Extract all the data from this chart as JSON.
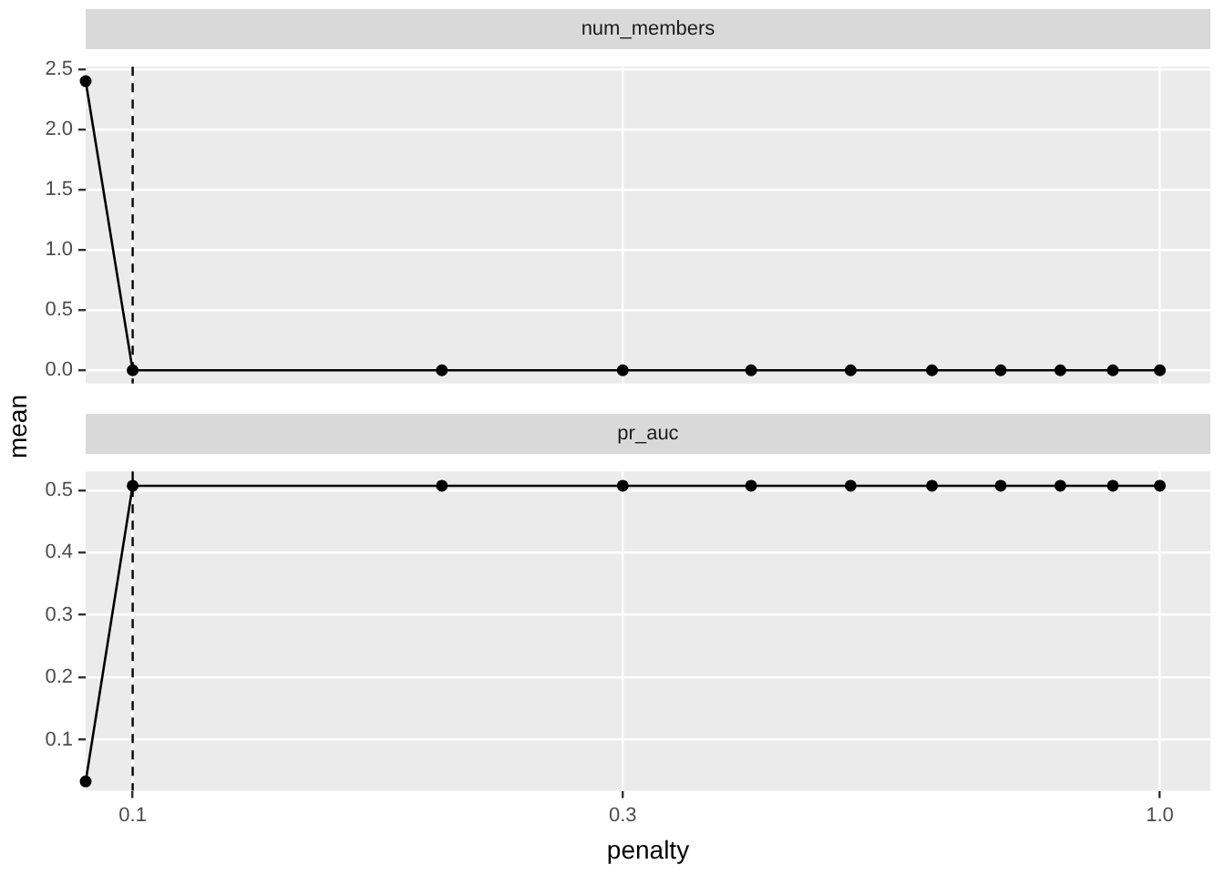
{
  "chart_data": [
    {
      "type": "line",
      "title": "num_members",
      "ylabel": "mean",
      "x": [
        0.09,
        0.1,
        0.2,
        0.3,
        0.4,
        0.5,
        0.6,
        0.7,
        0.8,
        0.9,
        1.0
      ],
      "series": [
        {
          "color": "#000000",
          "values": [
            2.4,
            0,
            0,
            0,
            0,
            0,
            0,
            0,
            0,
            0,
            0
          ]
        }
      ],
      "log": "x",
      "xlim": [
        0.09,
        1.12
      ],
      "xticks": [
        0.1,
        0.3,
        1
      ],
      "ylim": [
        -0.11,
        2.52
      ],
      "yticks": [
        {
          "value": 0,
          "label": "0.0"
        },
        0.5,
        {
          "value": 1,
          "label": "1.0"
        },
        1.5,
        {
          "value": 2,
          "label": "2.0"
        },
        2.5
      ],
      "grid": true,
      "marker": "circle",
      "tick_labels": "y",
      "ref_lines": [
        {
          "axis": "x",
          "value": 0.1,
          "color": "#000000",
          "line_style": "dashed"
        }
      ]
    },
    {
      "type": "line",
      "title": "pr_auc",
      "xlabel": "penalty",
      "x": [
        0.09,
        0.1,
        0.2,
        0.3,
        0.4,
        0.5,
        0.6,
        0.7,
        0.8,
        0.9,
        1.0
      ],
      "series": [
        {
          "color": "#000000",
          "values": [
            0.033,
            0.507,
            0.507,
            0.507,
            0.507,
            0.507,
            0.507,
            0.507,
            0.507,
            0.507,
            0.507
          ]
        }
      ],
      "log": "x",
      "xlim": [
        0.09,
        1.12
      ],
      "xticks": [
        0.1,
        0.3,
        {
          "value": 1,
          "label": "1.0"
        }
      ],
      "ylim": [
        0.018,
        0.53
      ],
      "yticks": [
        0.1,
        0.2,
        0.3,
        0.4,
        0.5
      ],
      "grid": true,
      "marker": "circle",
      "ref_lines": [
        {
          "axis": "x",
          "value": 0.1,
          "color": "#000000",
          "line_style": "dashed"
        }
      ]
    }
  ]
}
